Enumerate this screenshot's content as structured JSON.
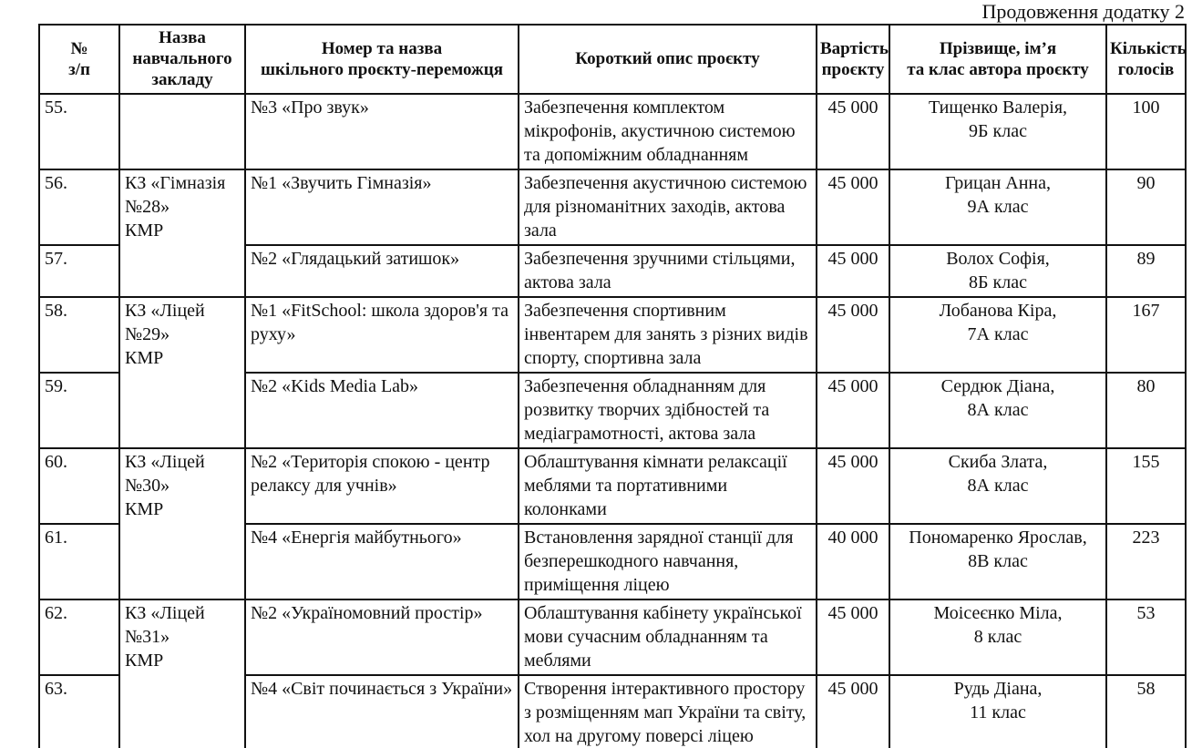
{
  "page": {
    "continuation_label": "Продовження додатку 2"
  },
  "table": {
    "columns": [
      {
        "key": "num",
        "label": "№\nз/п"
      },
      {
        "key": "school",
        "label": "Назва\nнавчального закладу"
      },
      {
        "key": "project",
        "label": "Номер та назва\nшкільного проєкту-переможця"
      },
      {
        "key": "description",
        "label": "Короткий опис проєкту"
      },
      {
        "key": "cost",
        "label": "Вартість\nпроєкту"
      },
      {
        "key": "author",
        "label": "Прізвище, ім’я\nта клас автора проєкту"
      },
      {
        "key": "votes",
        "label": "Кількість\nголосів"
      }
    ],
    "rows": [
      {
        "num": "55.",
        "school": "",
        "school_rowspan": 1,
        "project": "№3 «Про звук»",
        "description": "Забезпечення комплектом мікрофонів, акустичною системою та допоміжним обладнанням",
        "cost": "45 000",
        "author": "Тищенко Валерія,\n9Б клас",
        "votes": "100"
      },
      {
        "num": "56.",
        "school": "КЗ «Гімназія №28»\nКМР",
        "school_rowspan": 2,
        "project": "№1 «Звучить Гімназія»",
        "description": "Забезпечення акустичною системою для різноманітних заходів, актова зала",
        "cost": "45 000",
        "author": "Грицан Анна,\n9А клас",
        "votes": "90"
      },
      {
        "num": "57.",
        "school": null,
        "school_rowspan": 0,
        "project": "№2 «Глядацький затишок»",
        "description": "Забезпечення зручними стільцями, актова зала",
        "cost": "45 000",
        "author": "Волох Софія,\n8Б клас",
        "votes": "89"
      },
      {
        "num": "58.",
        "school": "КЗ «Ліцей №29»\nКМР",
        "school_rowspan": 2,
        "project": "№1 «FitSchool: школа здоров'я та руху»",
        "description": "Забезпечення спортивним інвентарем для занять з різних видів спорту, спортивна зала",
        "cost": "45 000",
        "author": "Лобанова Кіра,\n7А клас",
        "votes": "167"
      },
      {
        "num": "59.",
        "school": null,
        "school_rowspan": 0,
        "project": "№2 «Kids Media Lab»",
        "description": "Забезпечення обладнанням для розвитку творчих здібностей та медіаграмотності, актова зала",
        "cost": "45 000",
        "author": "Сердюк Діана,\n8А клас",
        "votes": "80"
      },
      {
        "num": "60.",
        "school": "КЗ «Ліцей №30»\nКМР",
        "school_rowspan": 2,
        "project": "№2 «Територія спокою - центр релаксу для учнів»",
        "description": "Облаштування кімнати релаксації меблями та портативними колонками",
        "cost": "45 000",
        "author": "Скиба Злата,\n8А клас",
        "votes": "155"
      },
      {
        "num": "61.",
        "school": null,
        "school_rowspan": 0,
        "project": "№4 «Енергія майбутнього»",
        "description": "Встановлення зарядної станції для безперешкодного навчання, приміщення ліцею",
        "cost": "40 000",
        "author": "Пономаренко Ярослав,\n8В клас",
        "votes": "223"
      },
      {
        "num": "62.",
        "school": "КЗ «Ліцей №31»\nКМР",
        "school_rowspan": 2,
        "project": "№2 «Україномовний простір»",
        "description": "Облаштування кабінету української мови сучасним обладнанням та меблями",
        "cost": "45 000",
        "author": "Моісеєнко Міла,\n8 клас",
        "votes": "53"
      },
      {
        "num": "63.",
        "school": null,
        "school_rowspan": 0,
        "project": "№4 «Світ починається з України»",
        "description": "Створення інтерактивного простору з розміщенням мап України та світу, хол на другому поверсі ліцею",
        "cost": "45 000",
        "author": "Рудь Діана,\n11 клас",
        "votes": "58"
      }
    ]
  }
}
